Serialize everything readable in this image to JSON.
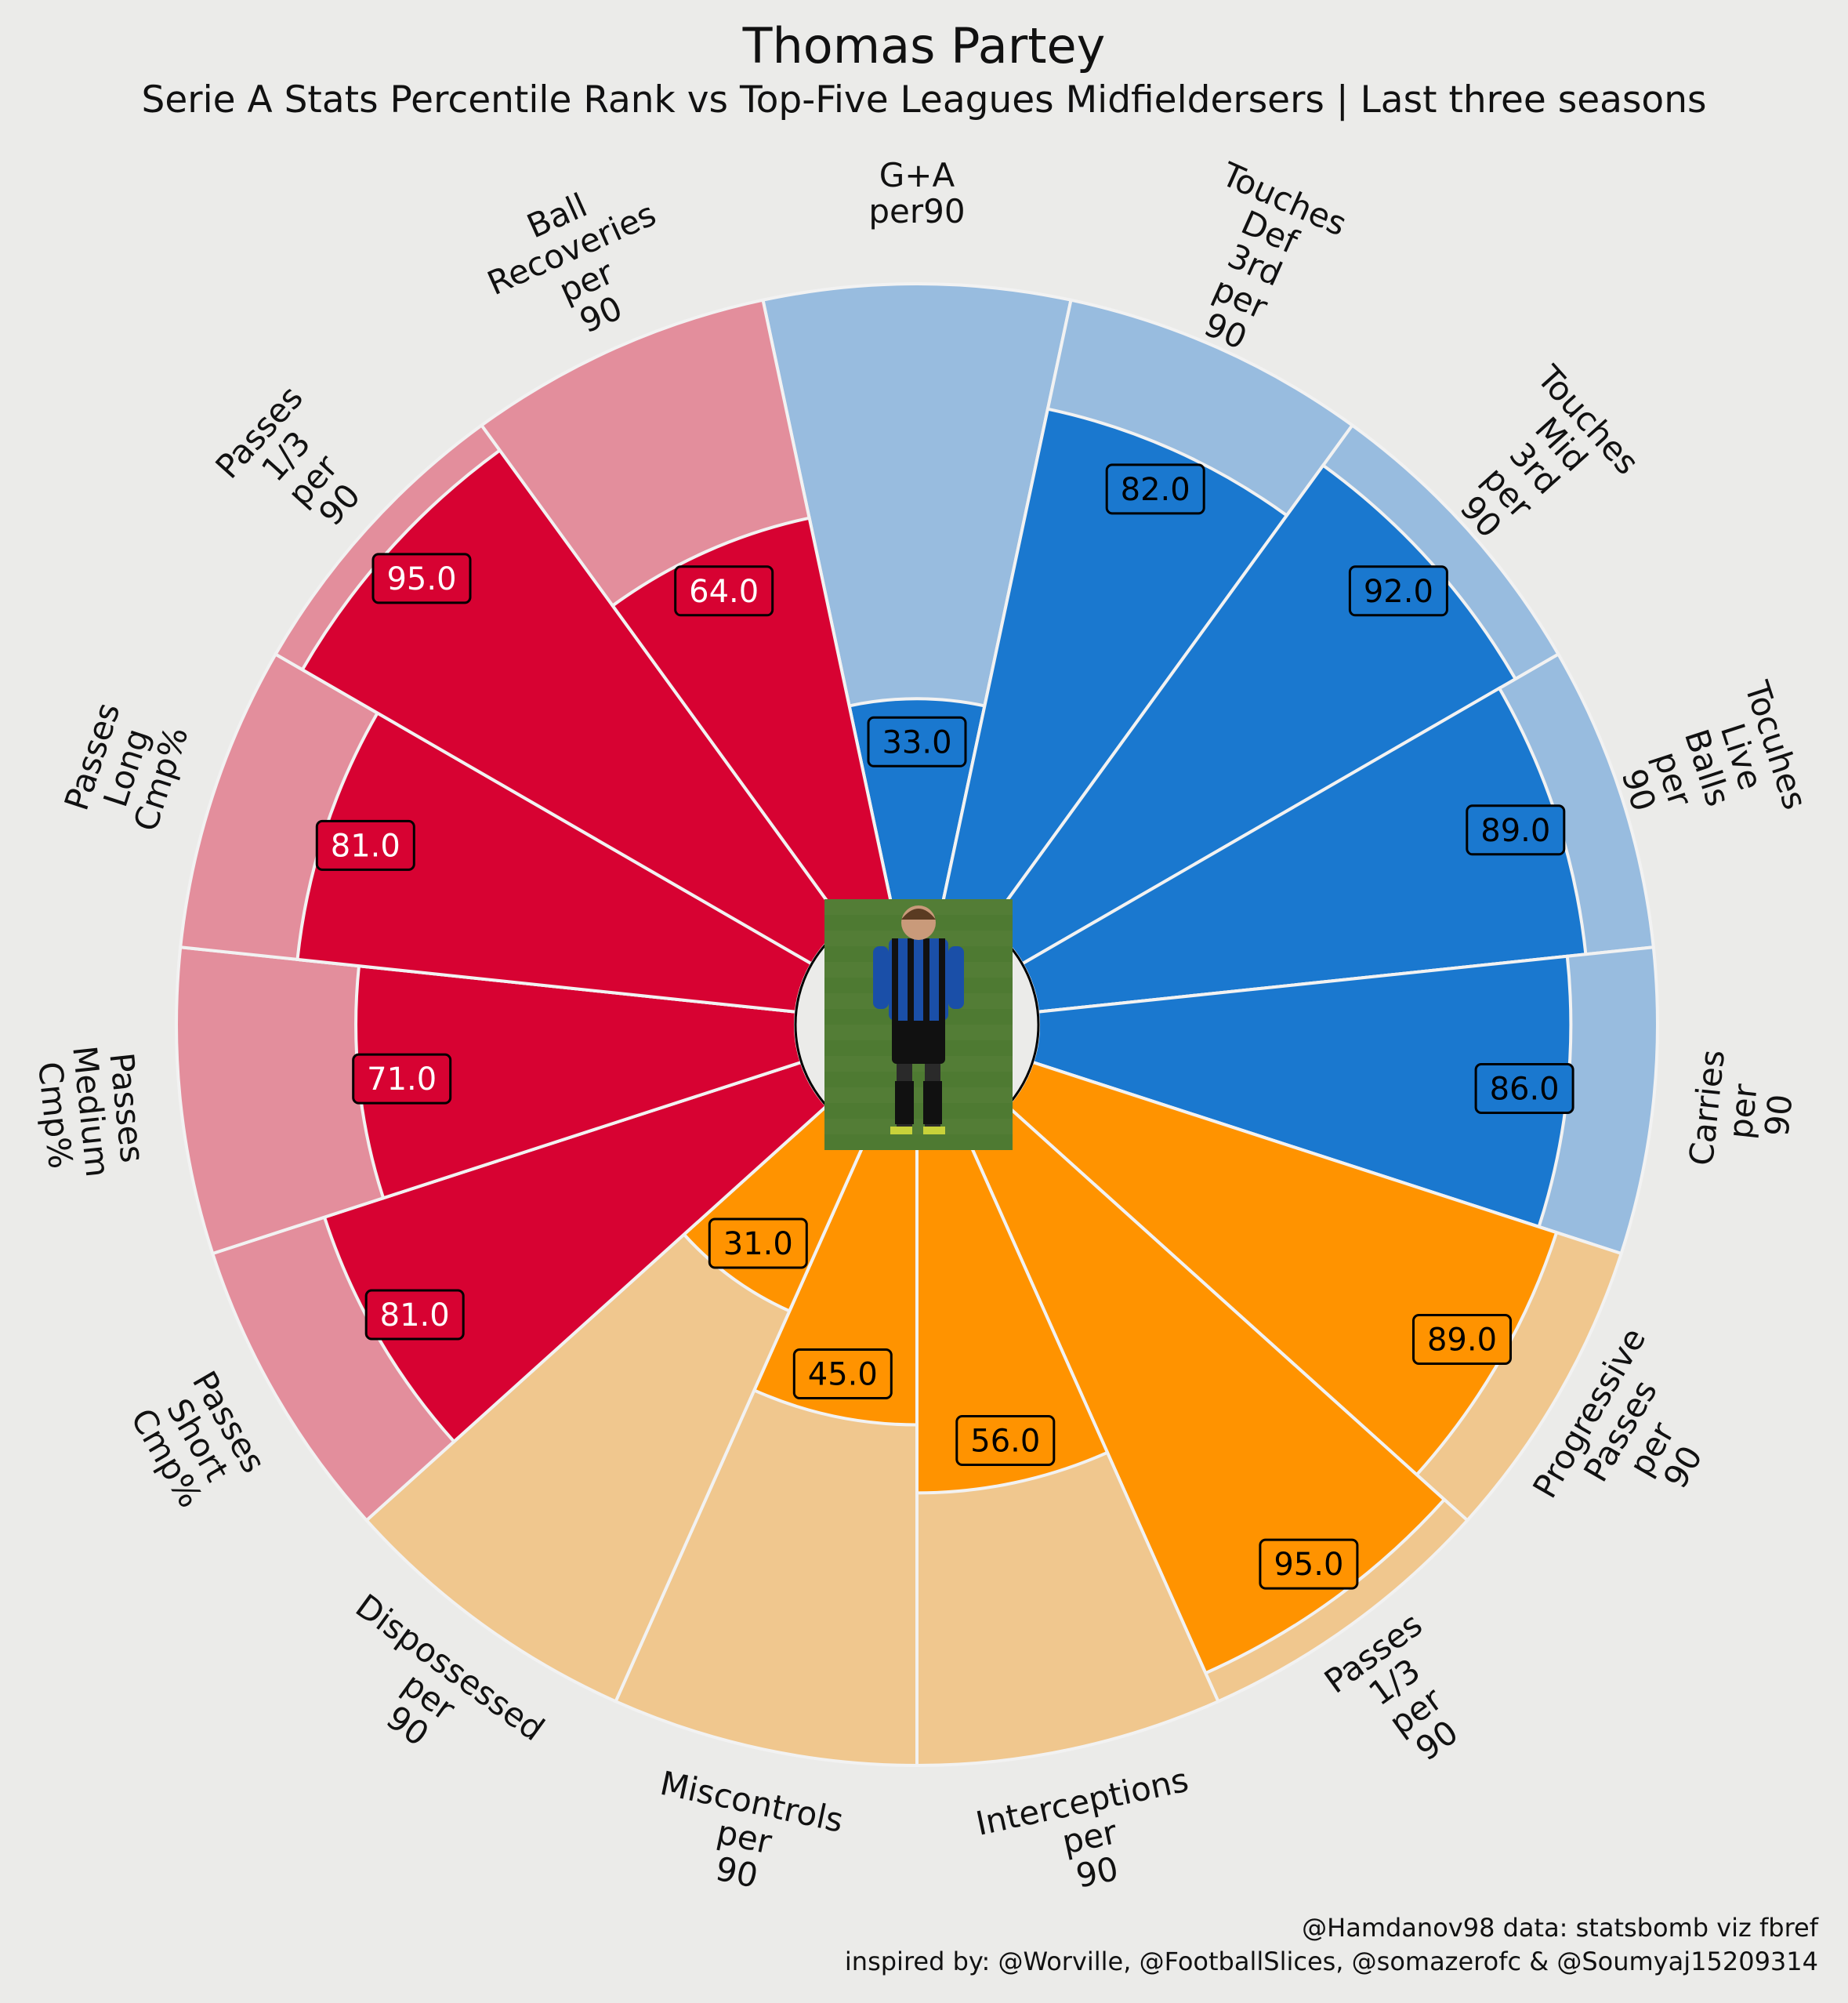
{
  "title": "Thomas Partey",
  "subtitle": "Serie A Stats Percentile Rank vs Top-Five Leagues Midfieldersers | Last three seasons",
  "credits": [
    "@Hamdanov98 data: statsbomb viz fbref",
    "inspired by: @Worville, @FootballSlices, @somazerofc & @Soumyaj15209314"
  ],
  "colors": {
    "background": "#ebebe9",
    "possession": "#1a78cf",
    "possession_light": "#98bcdf",
    "defending": "#ff9300",
    "defending_light": "#f0c78e",
    "passing": "#d70232",
    "passing_light": "#e38e9c",
    "slice_edge": "#f2f2f2"
  },
  "chart_data": {
    "type": "pie",
    "variant": "pizza",
    "range": [
      0,
      100
    ],
    "start": "top, clockwise",
    "center_image": "player photo",
    "params": [
      {
        "label": "G+A\nper90",
        "value": 33.0,
        "group": "possession"
      },
      {
        "label": "Touches\nDef\n3rd\nper\n90",
        "value": 82.0,
        "group": "possession"
      },
      {
        "label": "Touches\nMid\n3rd\nper\n90",
        "value": 92.0,
        "group": "possession"
      },
      {
        "label": "Tocuhes\nLive\nBalls\nper\n90",
        "value": 89.0,
        "group": "possession"
      },
      {
        "label": "Carries\nper\n90",
        "value": 86.0,
        "group": "possession"
      },
      {
        "label": "Progressive\nPasses\nper\n90",
        "value": 89.0,
        "group": "defending"
      },
      {
        "label": "Passes\n1/3\nper\n90",
        "value": 95.0,
        "group": "defending"
      },
      {
        "label": "Interceptions\nper\n90",
        "value": 56.0,
        "group": "defending"
      },
      {
        "label": "Miscontrols\nper\n90",
        "value": 45.0,
        "group": "defending"
      },
      {
        "label": "Dispossessed\nper\n90",
        "value": 31.0,
        "group": "defending"
      },
      {
        "label": "Passes\nShort\nCmp%",
        "value": 81.0,
        "group": "passing"
      },
      {
        "label": "Passes\nMedium\nCmp%",
        "value": 71.0,
        "group": "passing"
      },
      {
        "label": "Passes\nLong\nCmp%",
        "value": 81.0,
        "group": "passing"
      },
      {
        "label": "Passes\n1/3\nper\n90",
        "value": 95.0,
        "group": "passing"
      },
      {
        "label": "Ball\nRecoveries\nper\n90",
        "value": 64.0,
        "group": "passing"
      }
    ]
  }
}
